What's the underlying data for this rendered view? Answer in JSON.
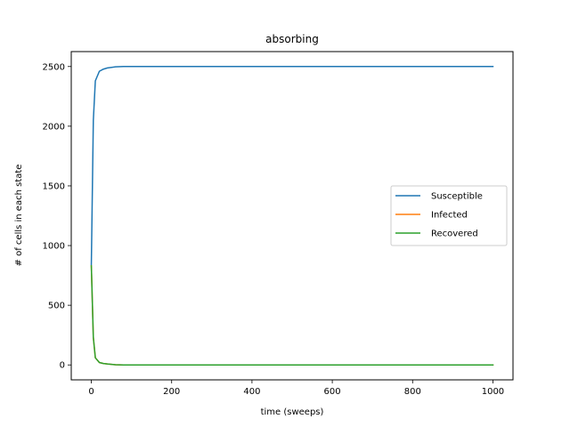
{
  "chart_data": {
    "type": "line",
    "title": "absorbing",
    "xlabel": "time (sweeps)",
    "ylabel": "# of cells in each state",
    "xlim": [
      -50,
      1050
    ],
    "ylim": [
      -125,
      2625
    ],
    "xticks": [
      0,
      200,
      400,
      600,
      800,
      1000
    ],
    "yticks": [
      0,
      500,
      1000,
      1500,
      2000,
      2500
    ],
    "grid": false,
    "legend_position": "center-right",
    "series": [
      {
        "name": "Susceptible",
        "color": "#1f77b4",
        "x": [
          0,
          5,
          10,
          20,
          30,
          40,
          60,
          80,
          100,
          200,
          400,
          600,
          800,
          1000
        ],
        "y": [
          840,
          2050,
          2380,
          2460,
          2478,
          2488,
          2497,
          2500,
          2500,
          2500,
          2500,
          2500,
          2500,
          2500
        ]
      },
      {
        "name": "Infected",
        "color": "#ff7f0e",
        "x": [
          0,
          5,
          10,
          20,
          30,
          40,
          60,
          80,
          100,
          200,
          400,
          600,
          800,
          1000
        ],
        "y": [
          830,
          230,
          60,
          20,
          12,
          8,
          2,
          0,
          0,
          0,
          0,
          0,
          0,
          0
        ]
      },
      {
        "name": "Recovered",
        "color": "#2ca02c",
        "x": [
          0,
          5,
          10,
          20,
          30,
          40,
          60,
          80,
          100,
          200,
          400,
          600,
          800,
          1000
        ],
        "y": [
          830,
          230,
          60,
          20,
          12,
          8,
          2,
          0,
          0,
          0,
          0,
          0,
          0,
          0
        ]
      }
    ]
  }
}
